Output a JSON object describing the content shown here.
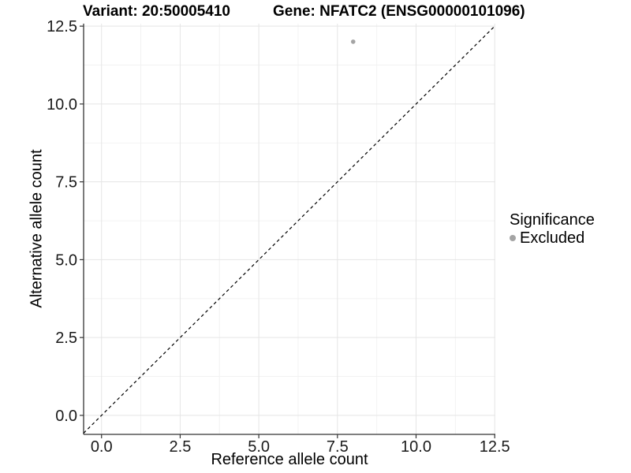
{
  "chart_data": {
    "type": "scatter",
    "title_left": "Variant: 20:50005410",
    "title_right": "Gene: NFATC2 (ENSG00000101096)",
    "xlabel": "Reference allele count",
    "ylabel": "Alternative allele count",
    "xlim": [
      -0.57,
      12.52
    ],
    "ylim": [
      -0.61,
      12.58
    ],
    "x_ticks": {
      "values": [
        0,
        2.5,
        5,
        7.5,
        10,
        12.5
      ],
      "labels": [
        "0.0",
        "2.5",
        "5.0",
        "7.5",
        "10.0",
        "12.5"
      ]
    },
    "y_ticks": {
      "values": [
        0,
        2.5,
        5,
        7.5,
        10,
        12.5
      ],
      "labels": [
        "0.0",
        "2.5",
        "5.0",
        "7.5",
        "10.0",
        "12.5"
      ]
    },
    "minor_ticks": [
      1.25,
      3.75,
      6.25,
      8.75,
      11.25
    ],
    "grid": "major+minor",
    "reference_line": {
      "style": "dashed",
      "slope": 1,
      "intercept": 0,
      "color": "#000000"
    },
    "series": [
      {
        "name": "Excluded",
        "color": "#a4a4a4",
        "point_radius": 2.8,
        "points": [
          [
            8,
            12
          ]
        ]
      }
    ],
    "legend": {
      "title": "Significance",
      "position": "right",
      "entries": [
        {
          "label": "Excluded",
          "color": "#a4a4a4"
        }
      ]
    },
    "colors": {
      "grid_major": "#e5e5e5",
      "grid_minor": "#f1f1f1",
      "axis": "#333333",
      "tick_text": "#1a1a1a",
      "background": "#ffffff"
    }
  }
}
